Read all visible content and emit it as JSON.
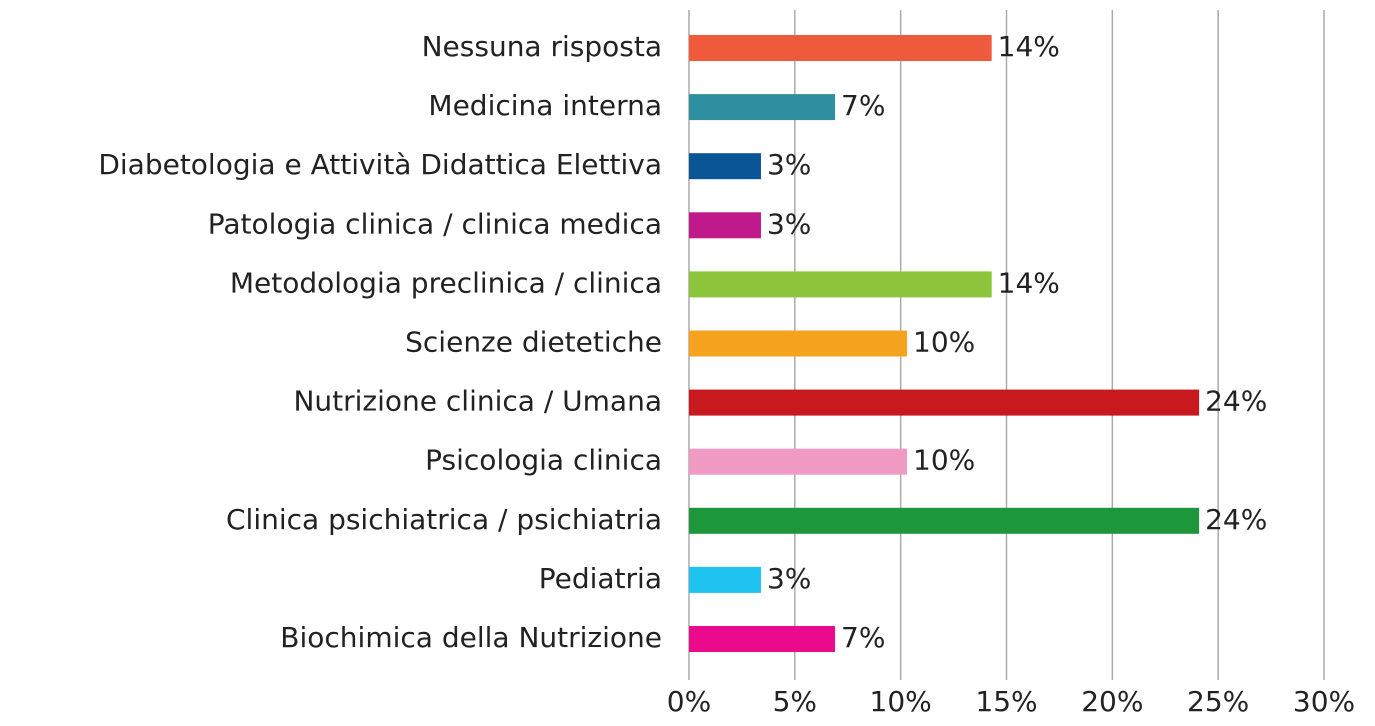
{
  "chart_data": {
    "type": "hbar",
    "categories": [
      "Nessuna risposta",
      "Medicina interna",
      "Diabetologia e Attività Didattica Elettiva",
      "Patologia clinica / clinica medica",
      "Metodologia preclinica / clinica",
      "Scienze dietetiche",
      "Nutrizione clinica / Umana",
      "Psicologia clinica",
      "Clinica psichiatrica / psichiatria",
      "Pediatria",
      "Biochimica della Nutrizione"
    ],
    "values": [
      14.3,
      6.9,
      3.4,
      3.4,
      14.3,
      10.3,
      24.1,
      10.3,
      24.1,
      3.4,
      6.9
    ],
    "value_labels": [
      "14%",
      "7%",
      "3%",
      "3%",
      "14%",
      "10%",
      "24%",
      "10%",
      "24%",
      "3%",
      "7%"
    ],
    "colors": [
      "#f05a3c",
      "#2e8fa0",
      "#0a5596",
      "#c0198c",
      "#8cc43c",
      "#f5a21e",
      "#c8191e",
      "#f09bc3",
      "#1e963c",
      "#1ec3f0",
      "#eb0a8c"
    ],
    "xlim": [
      0,
      30
    ],
    "xticks": [
      {
        "value": 0,
        "label": "0%"
      },
      {
        "value": 5,
        "label": "5%"
      },
      {
        "value": 10,
        "label": "10%"
      },
      {
        "value": 15,
        "label": "15%"
      },
      {
        "value": 20,
        "label": "20%"
      },
      {
        "value": 25,
        "label": "25%"
      },
      {
        "value": 30,
        "label": "30%"
      }
    ],
    "grid": true
  }
}
